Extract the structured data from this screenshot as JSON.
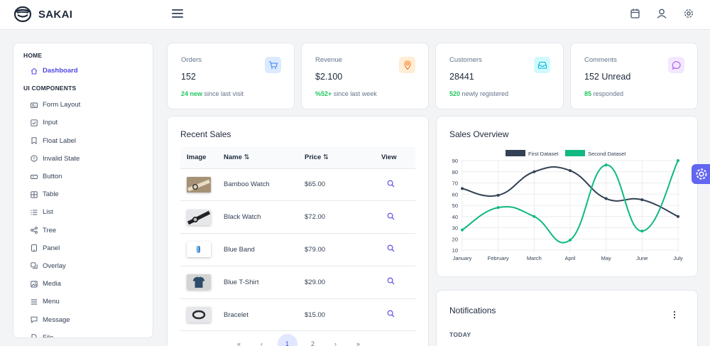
{
  "app": {
    "title": "SAKAI"
  },
  "icons": {
    "calendar": "calendar-icon",
    "user": "user-icon",
    "settings": "gear-icon",
    "menu": "hamburger-icon"
  },
  "sidebar": {
    "section_home": "HOME",
    "dashboard": "Dashboard",
    "section_ui": "UI COMPONENTS",
    "items": [
      {
        "label": "Form Layout",
        "icon": "id-card-icon"
      },
      {
        "label": "Input",
        "icon": "check-square-icon"
      },
      {
        "label": "Float Label",
        "icon": "bookmark-icon"
      },
      {
        "label": "Invalid State",
        "icon": "exclamation-circle-icon"
      },
      {
        "label": "Button",
        "icon": "button-icon"
      },
      {
        "label": "Table",
        "icon": "table-icon"
      },
      {
        "label": "List",
        "icon": "list-icon"
      },
      {
        "label": "Tree",
        "icon": "share-icon"
      },
      {
        "label": "Panel",
        "icon": "tablet-icon"
      },
      {
        "label": "Overlay",
        "icon": "clone-icon"
      },
      {
        "label": "Media",
        "icon": "image-icon"
      },
      {
        "label": "Menu",
        "icon": "bars-icon"
      },
      {
        "label": "Message",
        "icon": "comment-icon"
      },
      {
        "label": "File",
        "icon": "file-icon"
      }
    ]
  },
  "stats": [
    {
      "title": "Orders",
      "value": "152",
      "highlight": "24 new",
      "rest": " since last visit",
      "icon": "shopping-cart-icon",
      "bg": "#dbeafe",
      "color": "#3b82f6"
    },
    {
      "title": "Revenue",
      "value": "$2.100",
      "highlight": "%52+",
      "rest": " since last week",
      "icon": "map-marker-icon",
      "bg": "#ffedd5",
      "color": "#f97316"
    },
    {
      "title": "Customers",
      "value": "28441",
      "highlight": "520",
      "rest": " newly registered",
      "icon": "inbox-icon",
      "bg": "#cffafe",
      "color": "#06b6d4"
    },
    {
      "title": "Comments",
      "value": "152 Unread",
      "highlight": "85",
      "rest": " responded",
      "icon": "comment-icon",
      "bg": "#f3e8ff",
      "color": "#a855f7"
    }
  ],
  "recent_sales": {
    "title": "Recent Sales",
    "columns": [
      "Image",
      "Name",
      "Price",
      "View"
    ],
    "rows": [
      {
        "name": "Bamboo Watch",
        "price": "$65.00"
      },
      {
        "name": "Black Watch",
        "price": "$72.00"
      },
      {
        "name": "Blue Band",
        "price": "$79.00"
      },
      {
        "name": "Blue T-Shirt",
        "price": "$29.00"
      },
      {
        "name": "Bracelet",
        "price": "$15.00"
      }
    ],
    "pager": {
      "first": "«",
      "prev": "‹",
      "current": "1",
      "next_page": "2",
      "next": "›",
      "last": "»"
    }
  },
  "sales_overview": {
    "title": "Sales Overview"
  },
  "chart_data": {
    "type": "line",
    "x": [
      "January",
      "February",
      "March",
      "April",
      "May",
      "June",
      "July"
    ],
    "series": [
      {
        "name": "First Dataset",
        "values": [
          65,
          59,
          80,
          81,
          56,
          55,
          40
        ],
        "color": "#334155"
      },
      {
        "name": "Second Dataset",
        "values": [
          28,
          48,
          40,
          19,
          86,
          27,
          90
        ],
        "color": "#10b981"
      }
    ],
    "ylim": [
      10,
      90
    ],
    "yticks": [
      10,
      20,
      30,
      40,
      50,
      60,
      70,
      80,
      90
    ],
    "grid": true,
    "legend": "top"
  },
  "notifications": {
    "title": "Notifications",
    "today": "TODAY"
  },
  "colors": {
    "accent": "#4f46e5",
    "success": "#22c55e"
  }
}
